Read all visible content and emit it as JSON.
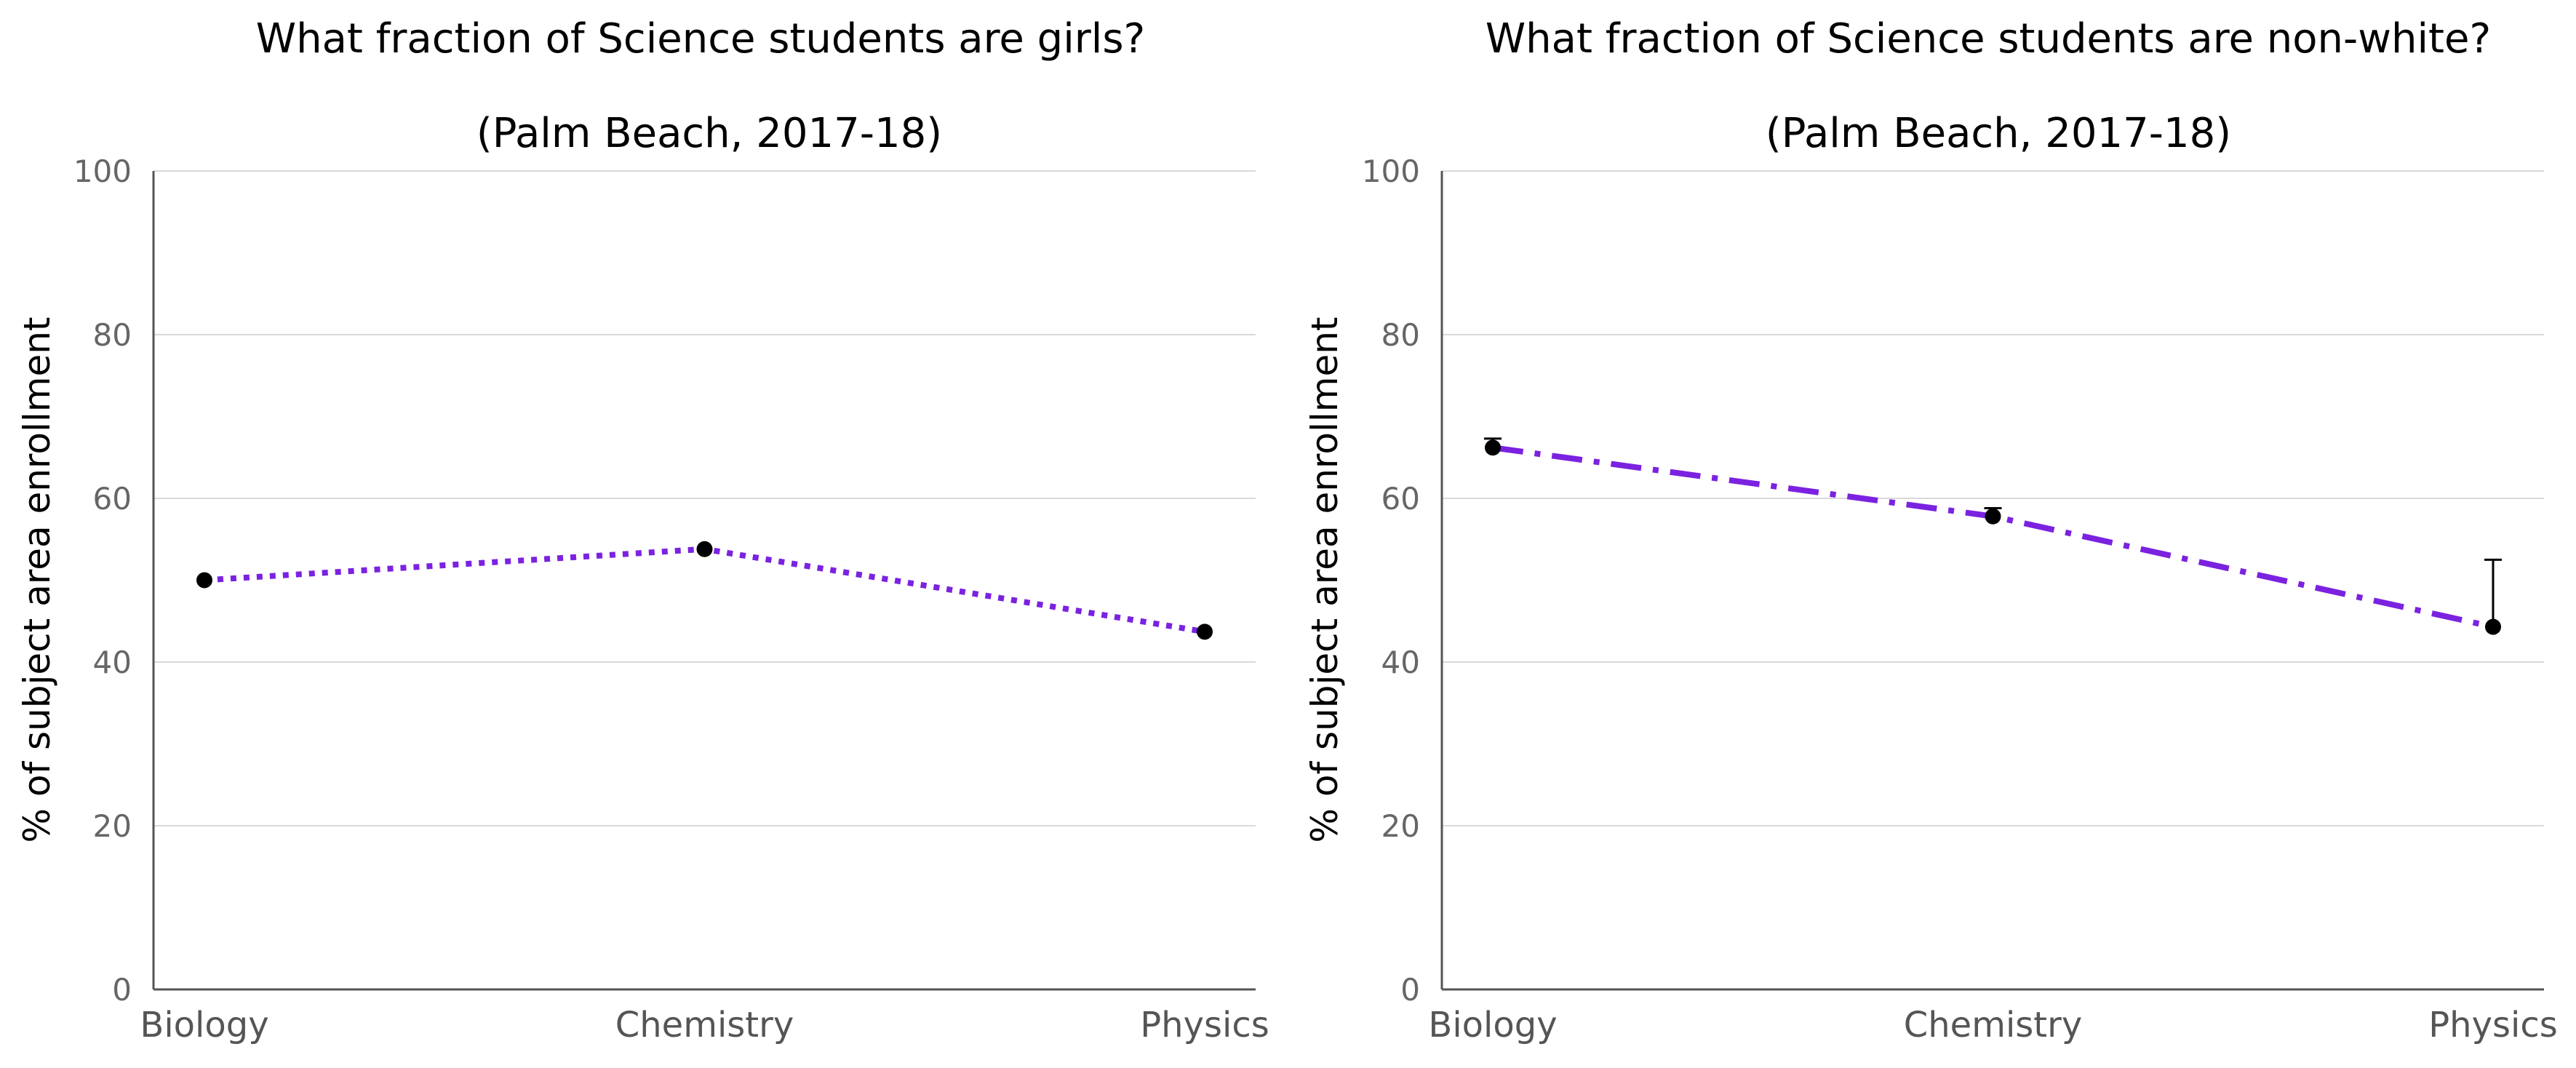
{
  "colors": {
    "series_line": "#7b22e0",
    "points": "#000000",
    "grid": "#d9d9d9",
    "axis": "#555555",
    "tick_text": "#666666"
  },
  "chart_data": [
    {
      "type": "line",
      "title": "What fraction of Science students are girls?",
      "subtitle": "(Palm Beach, 2017-18)",
      "xlabel": "",
      "ylabel": "% of subject area enrollment",
      "categories": [
        "Biology",
        "Chemistry",
        "Physics"
      ],
      "series": [
        {
          "values": [
            50.0,
            53.8,
            43.7
          ],
          "line_style": "dotted"
        }
      ],
      "ylim": [
        0,
        100
      ],
      "yticks": [
        0,
        20,
        40,
        60,
        80,
        100
      ],
      "grid": true,
      "legend": "none"
    },
    {
      "type": "line",
      "title": "What fraction of Science students are non-white?",
      "subtitle": "(Palm Beach, 2017-18)",
      "xlabel": "",
      "ylabel": "% of subject area enrollment",
      "categories": [
        "Biology",
        "Chemistry",
        "Physics"
      ],
      "series": [
        {
          "values": [
            66.2,
            57.8,
            44.3
          ],
          "line_style": "dash-dot",
          "error_upper": [
            67.3,
            58.8,
            52.5
          ]
        }
      ],
      "ylim": [
        0,
        100
      ],
      "yticks": [
        0,
        20,
        40,
        60,
        80,
        100
      ],
      "grid": true,
      "legend": "none"
    }
  ]
}
